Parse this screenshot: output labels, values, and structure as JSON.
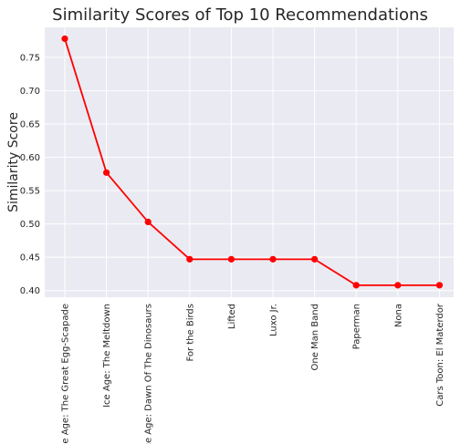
{
  "chart_data": {
    "type": "line",
    "title": "Similarity Scores of Top 10 Recommendations",
    "xlabel": "",
    "ylabel": "Similarity Score",
    "categories": [
      "Ice Age: The Great Egg-Scapade",
      "Ice Age: The Meltdown",
      "Ice Age: Dawn Of The Dinosaurs",
      "For the Birds",
      "Lifted",
      "Luxo Jr.",
      "One Man Band",
      "Paperman",
      "Nona",
      "Cars Toon: El Materdor"
    ],
    "series": [
      {
        "values": [
          0.778,
          0.577,
          0.503,
          0.447,
          0.447,
          0.447,
          0.447,
          0.408,
          0.408,
          0.408
        ]
      }
    ],
    "ylim": [
      0.39,
      0.795
    ],
    "yticks": [
      "0.40",
      "0.45",
      "0.50",
      "0.55",
      "0.60",
      "0.65",
      "0.70",
      "0.75"
    ],
    "grid": true,
    "colors": {
      "line": "#ff0000",
      "plot_background": "#eaeaf2",
      "grid": "#ffffff"
    }
  }
}
